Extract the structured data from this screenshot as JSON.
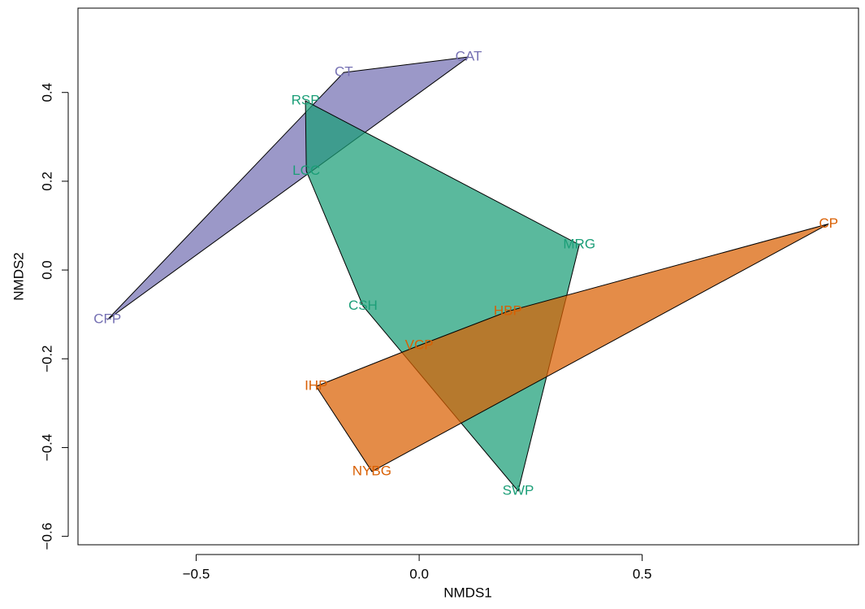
{
  "chart_data": {
    "type": "scatter",
    "xlabel": "NMDS1",
    "ylabel": "NMDS2",
    "xlim": [
      -0.765,
      0.985
    ],
    "ylim": [
      -0.619,
      0.59
    ],
    "xticks": [
      {
        "value": -0.5,
        "label": "−0.5"
      },
      {
        "value": 0,
        "label": "0.0"
      },
      {
        "value": 0.5,
        "label": "0.5"
      }
    ],
    "yticks": [
      {
        "value": -0.6,
        "label": "−0.6"
      },
      {
        "value": -0.4,
        "label": "−0.4"
      },
      {
        "value": -0.2,
        "label": "−0.2"
      },
      {
        "value": 0,
        "label": "0.0"
      },
      {
        "value": 0.2,
        "label": "0.2"
      },
      {
        "value": 0.4,
        "label": "0.4"
      }
    ],
    "hull": true,
    "series": [
      {
        "color": "#7570b3",
        "labels": [
          "CT",
          "CAT",
          "CFP",
          null
        ],
        "x": [
          -0.169,
          0.111,
          -0.699,
          -0.266
        ],
        "y": [
          0.445,
          0.48,
          -0.112,
          0.247
        ]
      },
      {
        "color": "#1b9e77",
        "labels": [
          "RSP",
          "LCC",
          "CSH",
          "MRG",
          "SWP"
        ],
        "x": [
          -0.255,
          -0.253,
          -0.126,
          0.359,
          0.222
        ],
        "y": [
          0.381,
          0.223,
          -0.081,
          0.057,
          -0.498
        ]
      },
      {
        "color": "#d95f02",
        "labels": [
          "CP",
          "HBP",
          "VCP",
          "IHP",
          "NYBG"
        ],
        "x": [
          0.918,
          0.199,
          0.0,
          -0.231,
          -0.106
        ],
        "y": [
          0.104,
          -0.093,
          -0.17,
          -0.262,
          -0.454
        ]
      }
    ]
  }
}
